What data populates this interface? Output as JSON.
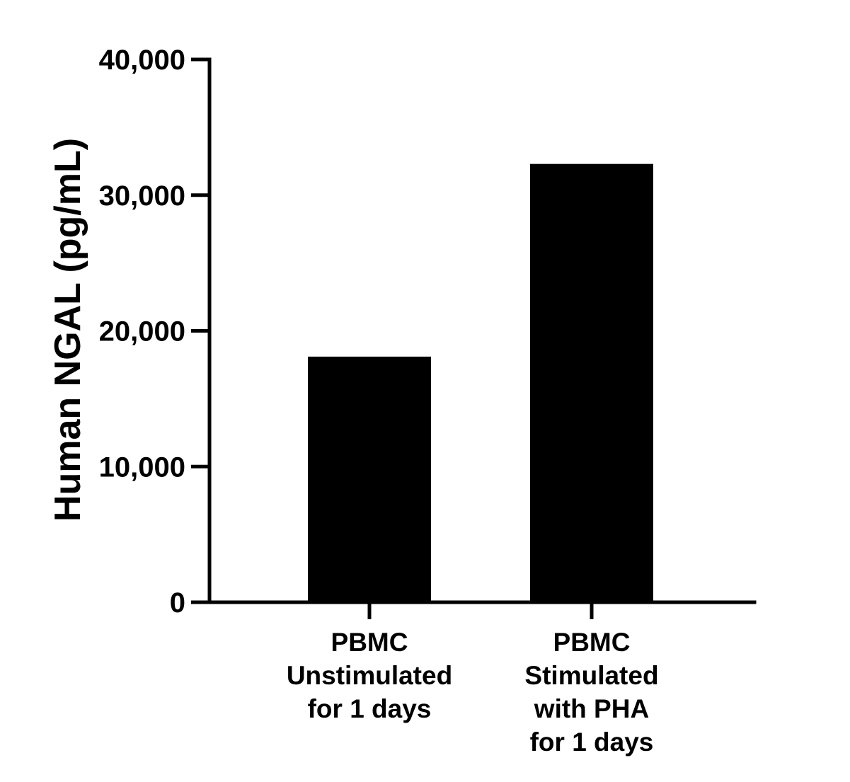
{
  "chart_data": {
    "type": "bar",
    "title": "",
    "xlabel": "",
    "ylabel": "Human NGAL (pg/mL)",
    "ylim": [
      0,
      40000
    ],
    "yticks": [
      0,
      10000,
      20000,
      30000,
      40000
    ],
    "ytick_labels": [
      "0",
      "10,000",
      "20,000",
      "30,000",
      "40,000"
    ],
    "categories": [
      [
        "PBMC",
        "Unstimulated",
        "for 1 days"
      ],
      [
        "PBMC",
        "Stimulated",
        "with PHA",
        "for 1 days"
      ]
    ],
    "values": [
      18100,
      32300
    ],
    "grid": false,
    "bar_color": "#000000",
    "axis_color": "#000000"
  }
}
